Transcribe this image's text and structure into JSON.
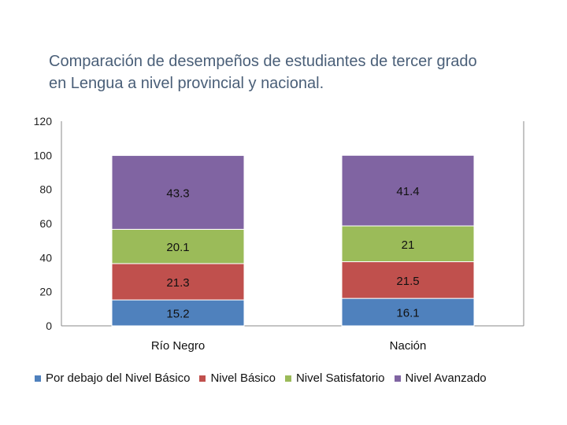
{
  "header": {
    "title_line1": "Comparación de desempeños de estudiantes de tercer grado",
    "title_line2": "en Lengua a nivel provincial y nacional."
  },
  "chart_data": {
    "type": "bar",
    "stacked": true,
    "title": "Comparación de desempeños de estudiantes de tercer grado en Lengua a nivel provincial y nacional.",
    "categories": [
      "Río Negro",
      "Nación"
    ],
    "ylim": [
      0,
      120
    ],
    "yticks": [
      0,
      20,
      40,
      60,
      80,
      100,
      120
    ],
    "legend_position": "bottom",
    "series": [
      {
        "name": "Por debajo del Nivel Básico",
        "color": "#4f81bd",
        "values": [
          15.2,
          16.1
        ],
        "labels": [
          "15.2",
          "16.1"
        ]
      },
      {
        "name": "Nivel Básico",
        "color": "#c0504d",
        "values": [
          21.3,
          21.5
        ],
        "labels": [
          "21.3",
          "21.5"
        ]
      },
      {
        "name": "Nivel Satisfatorio",
        "color": "#9bbb59",
        "values": [
          20.1,
          21
        ],
        "labels": [
          "20.1",
          "21"
        ]
      },
      {
        "name": "Nivel Avanzado",
        "color": "#8064a2",
        "values": [
          43.3,
          41.4
        ],
        "labels": [
          "43.3",
          "41.4"
        ]
      }
    ]
  }
}
